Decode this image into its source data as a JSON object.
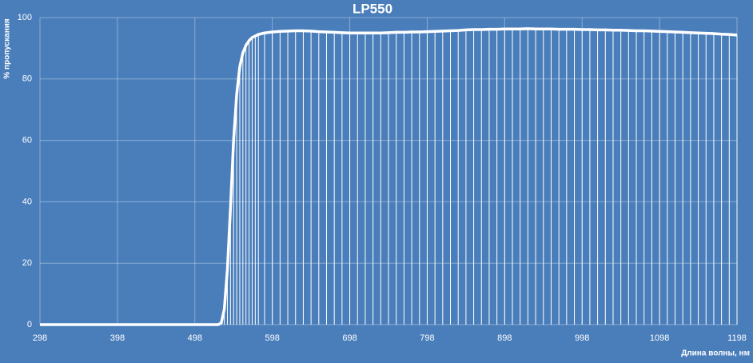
{
  "chart_data": {
    "type": "line",
    "title": "LP550",
    "x_label": "Длина волны, нм",
    "y_label": "% пропускания",
    "x": [
      298,
      308,
      318,
      328,
      338,
      348,
      358,
      368,
      378,
      388,
      398,
      408,
      418,
      428,
      438,
      448,
      458,
      468,
      478,
      488,
      498,
      508,
      518,
      528,
      532,
      536,
      540,
      544,
      548,
      552,
      556,
      560,
      564,
      568,
      572,
      576,
      580,
      588,
      598,
      608,
      618,
      628,
      638,
      648,
      658,
      668,
      678,
      688,
      698,
      708,
      718,
      728,
      738,
      748,
      758,
      768,
      778,
      788,
      798,
      808,
      818,
      828,
      838,
      848,
      858,
      868,
      878,
      888,
      898,
      908,
      918,
      928,
      938,
      948,
      958,
      968,
      978,
      988,
      998,
      1008,
      1018,
      1028,
      1038,
      1048,
      1058,
      1068,
      1078,
      1088,
      1098,
      1108,
      1118,
      1128,
      1138,
      1148,
      1158,
      1168,
      1178,
      1188,
      1198
    ],
    "values": [
      0,
      0,
      0,
      0,
      0,
      0,
      0,
      0,
      0,
      0,
      0,
      0,
      0,
      0,
      0,
      0,
      0,
      0,
      0,
      0,
      0,
      0,
      0,
      0,
      0.5,
      5,
      18,
      38,
      60,
      75,
      84,
      88.5,
      91,
      92.5,
      93.5,
      94,
      94.5,
      95,
      95.3,
      95.5,
      95.6,
      95.7,
      95.7,
      95.6,
      95.4,
      95.3,
      95.2,
      95.1,
      95.0,
      95.0,
      95.0,
      95.0,
      95.0,
      95.1,
      95.2,
      95.2,
      95.3,
      95.3,
      95.4,
      95.5,
      95.6,
      95.7,
      95.8,
      96.0,
      96.1,
      96.1,
      96.2,
      96.2,
      96.3,
      96.3,
      96.3,
      96.4,
      96.3,
      96.3,
      96.3,
      96.2,
      96.2,
      96.2,
      96.1,
      96.1,
      96.0,
      96.0,
      95.9,
      95.9,
      95.8,
      95.7,
      95.7,
      95.6,
      95.5,
      95.4,
      95.3,
      95.2,
      95.1,
      95.0,
      94.9,
      94.8,
      94.6,
      94.5,
      94.3
    ],
    "color": "#ffffff",
    "xlim": [
      298,
      1198
    ],
    "xticks": [
      298,
      398,
      498,
      598,
      698,
      798,
      898,
      998,
      1098,
      1198
    ],
    "ylim": [
      0,
      100
    ],
    "yticks": [
      0,
      20,
      40,
      60,
      80,
      100
    ],
    "grid": true,
    "drop_lines": true
  }
}
